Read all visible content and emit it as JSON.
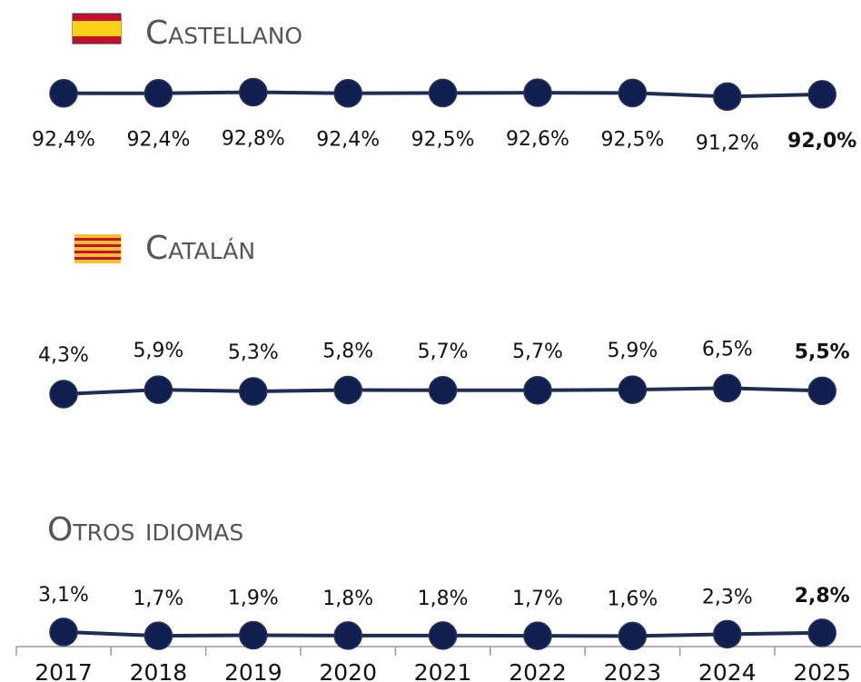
{
  "chart_data": [
    {
      "type": "line",
      "title": "Castellano",
      "color": "#1f2d50",
      "values": [
        92.4,
        92.4,
        92.8,
        92.4,
        92.5,
        92.6,
        92.5,
        91.2,
        92.0
      ],
      "value_labels": [
        "92,4%",
        "92,4%",
        "92,8%",
        "92,4%",
        "92,5%",
        "92,6%",
        "92,5%",
        "91,2%",
        "92,0%"
      ]
    },
    {
      "type": "line",
      "title": "Catalán",
      "color": "#1f2d50",
      "values": [
        4.3,
        5.9,
        5.3,
        5.8,
        5.7,
        5.7,
        5.9,
        6.5,
        5.5
      ],
      "value_labels": [
        "4,3%",
        "5,9%",
        "5,3%",
        "5,8%",
        "5,7%",
        "5,7%",
        "5,9%",
        "6,5%",
        "5,5%"
      ]
    },
    {
      "type": "line",
      "title": "Otros idiomas",
      "color": "#1f2d50",
      "categories": [
        "2017",
        "2018",
        "2019",
        "2020",
        "2021",
        "2022",
        "2023",
        "2024",
        "2025"
      ],
      "values": [
        3.1,
        1.7,
        1.9,
        1.8,
        1.8,
        1.7,
        1.6,
        2.3,
        2.8
      ],
      "value_labels": [
        "3,1%",
        "1,7%",
        "1,9%",
        "1,8%",
        "1,8%",
        "1,7%",
        "1,6%",
        "2,3%",
        "2,8%"
      ]
    }
  ]
}
